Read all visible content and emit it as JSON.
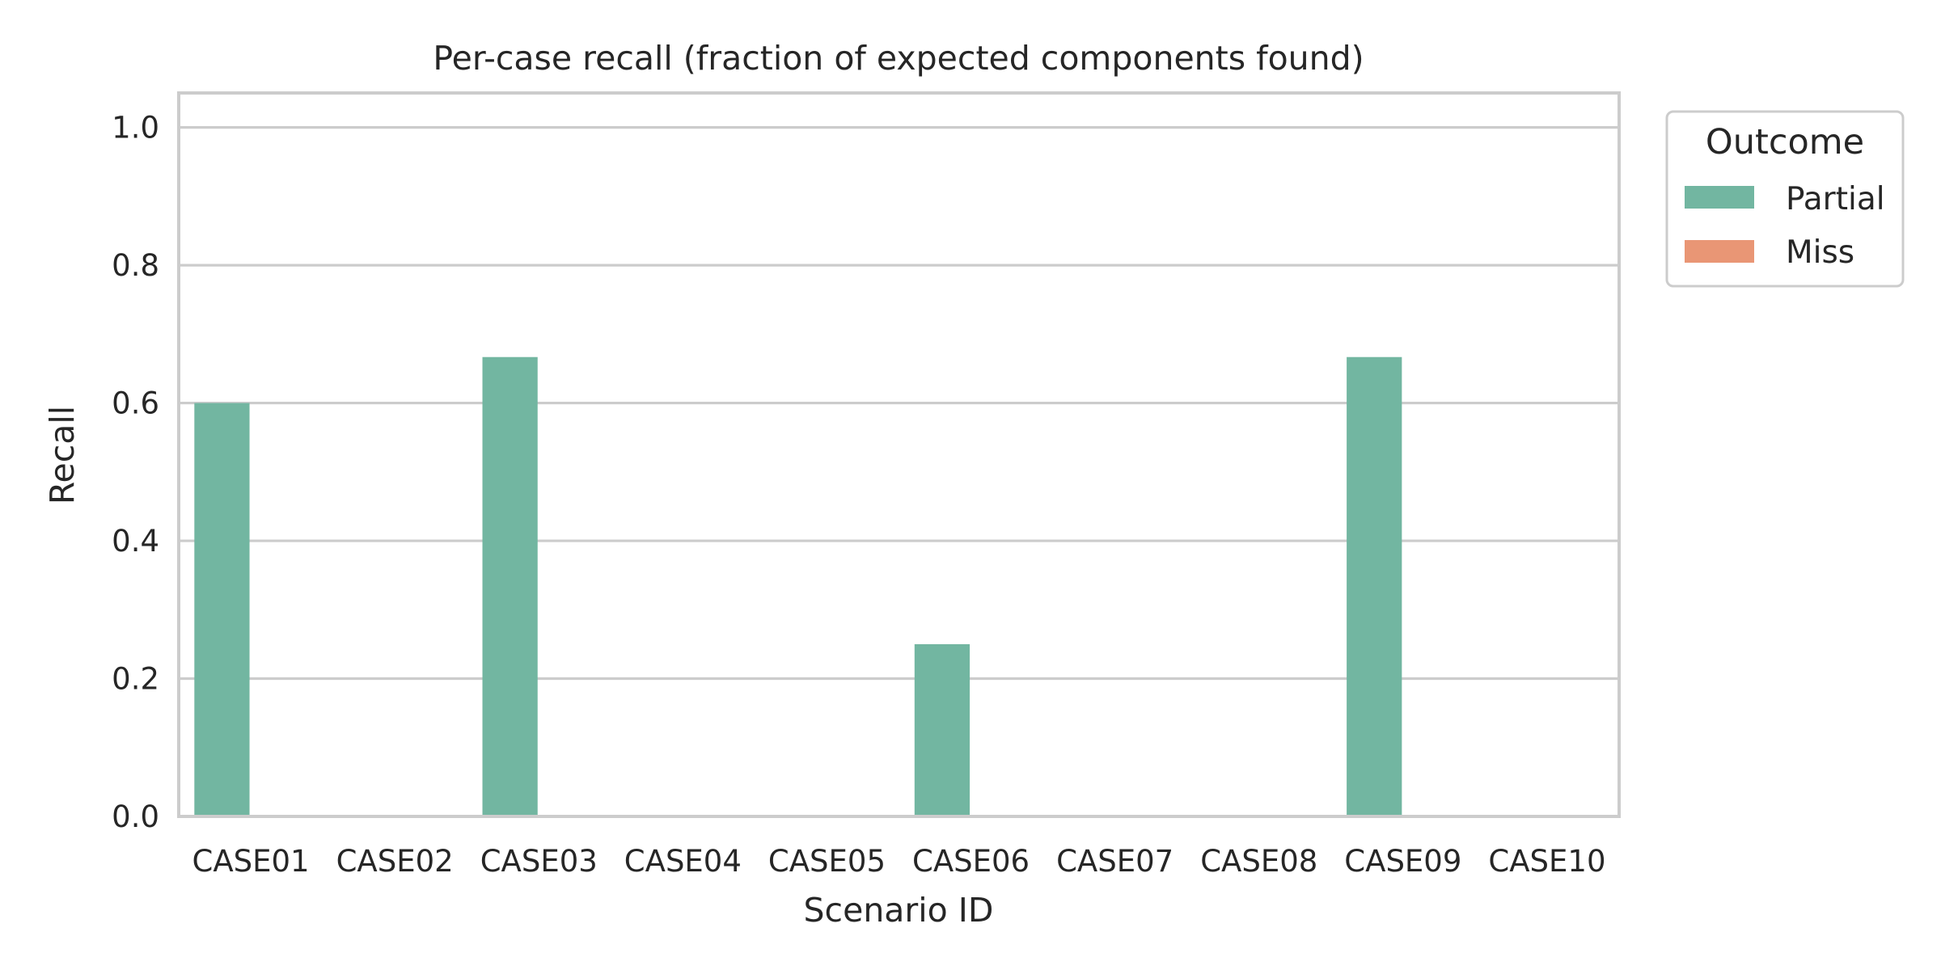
{
  "chart_data": {
    "type": "bar",
    "title": "Per-case recall (fraction of expected components found)",
    "xlabel": "Scenario ID",
    "ylabel": "Recall",
    "categories": [
      "CASE01",
      "CASE02",
      "CASE03",
      "CASE04",
      "CASE05",
      "CASE06",
      "CASE07",
      "CASE08",
      "CASE09",
      "CASE10"
    ],
    "series": [
      {
        "name": "Partial",
        "color": "#72B6A1",
        "values": [
          0.6,
          null,
          0.6667,
          null,
          null,
          0.25,
          null,
          null,
          0.6667,
          null
        ]
      },
      {
        "name": "Miss",
        "color": "#E99675",
        "values": [
          null,
          0,
          null,
          0,
          0,
          null,
          0,
          0,
          null,
          0
        ]
      }
    ],
    "ylim": [
      0,
      1.05
    ],
    "yticks": [
      "0.0",
      "0.2",
      "0.4",
      "0.6",
      "0.8",
      "1.0"
    ],
    "grid": "horizontal",
    "legend": {
      "title": "Outcome",
      "placement": "outside-top-right"
    }
  }
}
